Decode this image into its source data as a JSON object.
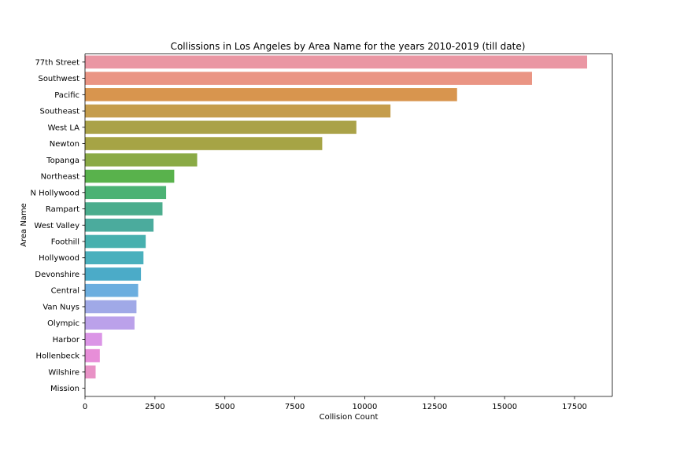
{
  "chart_data": {
    "type": "bar",
    "orientation": "horizontal",
    "title": "Collissions in Los Angeles by Area Name for the years 2010-2019 (till date)",
    "xlabel": "Collision Count",
    "ylabel": "Area Name",
    "xlim": [
      0,
      18850
    ],
    "xticks": [
      0,
      2500,
      5000,
      7500,
      10000,
      12500,
      15000,
      17500
    ],
    "grid": false,
    "categories": [
      "77th Street",
      "Southwest",
      "Pacific",
      "Southeast",
      "West LA",
      "Newton",
      "Topanga",
      "Northeast",
      "N Hollywood",
      "Rampart",
      "West Valley",
      "Foothill",
      "Hollywood",
      "Devonshire",
      "Central",
      "Van Nuys",
      "Olympic",
      "Harbor",
      "Hollenbeck",
      "Wilshire",
      "Mission"
    ],
    "values": [
      17950,
      15980,
      13300,
      10920,
      9700,
      8480,
      4010,
      3190,
      2900,
      2770,
      2450,
      2170,
      2090,
      2000,
      1900,
      1840,
      1770,
      610,
      530,
      380,
      0
    ],
    "colors": [
      "#ea96a3",
      "#ea9584",
      "#d8954e",
      "#c59d4c",
      "#aaa248",
      "#a6a445",
      "#8aaa45",
      "#59b24c",
      "#4bb274",
      "#4bad8d",
      "#4bab9d",
      "#47b0ae",
      "#4ab0bd",
      "#4babc8",
      "#6caedf",
      "#a0a9e7",
      "#bba1ea",
      "#db95e6",
      "#e78ed8",
      "#e892c6",
      "#e994b8"
    ]
  }
}
